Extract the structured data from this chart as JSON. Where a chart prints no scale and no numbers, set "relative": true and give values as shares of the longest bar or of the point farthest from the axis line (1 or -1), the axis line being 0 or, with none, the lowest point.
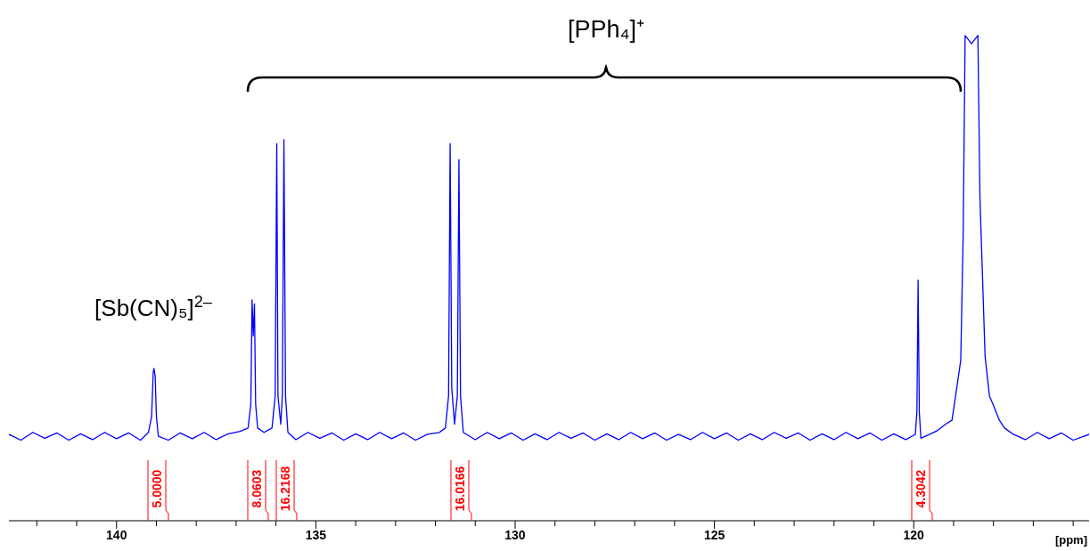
{
  "chart_data": {
    "type": "line",
    "relative": true,
    "xlabel": "[ppm]",
    "xlim": [
      142.7,
      115.6
    ],
    "xticks": [
      140,
      135,
      130,
      125,
      120
    ],
    "tick_labels": "x",
    "annotations": [
      "[PPh₄]⁺",
      "[Sb(CN)₅]$^{2–}$",
      "5.0000",
      "8.0603",
      "16.2168",
      "16.0166",
      "4.3042"
    ],
    "series": [
      {
        "color": "#0000ff",
        "x": [
          142.7,
          142.4,
          142.1,
          141.8,
          141.5,
          141.2,
          140.9,
          140.6,
          140.3,
          140.0,
          139.7,
          139.4,
          139.2,
          139.12,
          139.08,
          139.06,
          139.03,
          139.0,
          138.95,
          138.7,
          138.4,
          138.1,
          137.8,
          137.5,
          137.2,
          136.9,
          136.7,
          136.63,
          136.6,
          136.57,
          136.54,
          136.51,
          136.46,
          136.3,
          136.1,
          136.02,
          135.98,
          135.95,
          135.88,
          135.84,
          135.8,
          135.76,
          135.7,
          135.5,
          135.2,
          134.9,
          134.6,
          134.3,
          134.0,
          133.7,
          133.4,
          133.1,
          132.8,
          132.5,
          132.2,
          131.9,
          131.75,
          131.67,
          131.63,
          131.59,
          131.52,
          131.45,
          131.41,
          131.37,
          131.3,
          131.0,
          130.7,
          130.4,
          130.1,
          129.8,
          129.5,
          129.2,
          128.9,
          128.6,
          128.3,
          128.0,
          127.7,
          127.4,
          127.1,
          126.8,
          126.5,
          126.2,
          125.9,
          125.6,
          125.3,
          125.0,
          124.7,
          124.4,
          124.1,
          123.8,
          123.5,
          123.2,
          122.9,
          122.6,
          122.3,
          122.0,
          121.7,
          121.4,
          121.1,
          120.8,
          120.5,
          120.2,
          119.96,
          119.92,
          119.89,
          119.86,
          119.82,
          119.6,
          119.4,
          119.2,
          119.04,
          118.95,
          118.82,
          118.76,
          118.71,
          118.55,
          118.39,
          118.34,
          118.21,
          118.1,
          118.01,
          117.85,
          117.72,
          117.5,
          117.2,
          116.9,
          116.6,
          116.3,
          116.0,
          115.6
        ],
        "values": [
          0.178,
          0.166,
          0.182,
          0.17,
          0.181,
          0.166,
          0.179,
          0.167,
          0.182,
          0.169,
          0.181,
          0.166,
          0.182,
          0.215,
          0.306,
          0.314,
          0.298,
          0.215,
          0.174,
          0.166,
          0.181,
          0.169,
          0.182,
          0.167,
          0.179,
          0.184,
          0.191,
          0.24,
          0.455,
          0.381,
          0.447,
          0.24,
          0.191,
          0.182,
          0.191,
          0.257,
          0.777,
          0.257,
          0.199,
          0.257,
          0.785,
          0.257,
          0.182,
          0.167,
          0.182,
          0.17,
          0.181,
          0.166,
          0.179,
          0.167,
          0.182,
          0.169,
          0.181,
          0.166,
          0.178,
          0.182,
          0.191,
          0.257,
          0.777,
          0.273,
          0.199,
          0.257,
          0.744,
          0.257,
          0.182,
          0.167,
          0.182,
          0.169,
          0.181,
          0.166,
          0.179,
          0.167,
          0.182,
          0.17,
          0.181,
          0.166,
          0.179,
          0.167,
          0.182,
          0.169,
          0.181,
          0.166,
          0.178,
          0.167,
          0.182,
          0.169,
          0.181,
          0.166,
          0.179,
          0.167,
          0.182,
          0.17,
          0.181,
          0.166,
          0.179,
          0.167,
          0.182,
          0.169,
          0.181,
          0.166,
          0.179,
          0.167,
          0.178,
          0.224,
          0.496,
          0.224,
          0.17,
          0.178,
          0.186,
          0.199,
          0.207,
          0.257,
          0.331,
          0.587,
          1,
          0.983,
          1,
          0.67,
          0.339,
          0.257,
          0.24,
          0.207,
          0.191,
          0.178,
          0.167,
          0.182,
          0.169,
          0.181,
          0.166,
          0.178
        ]
      }
    ]
  }
}
